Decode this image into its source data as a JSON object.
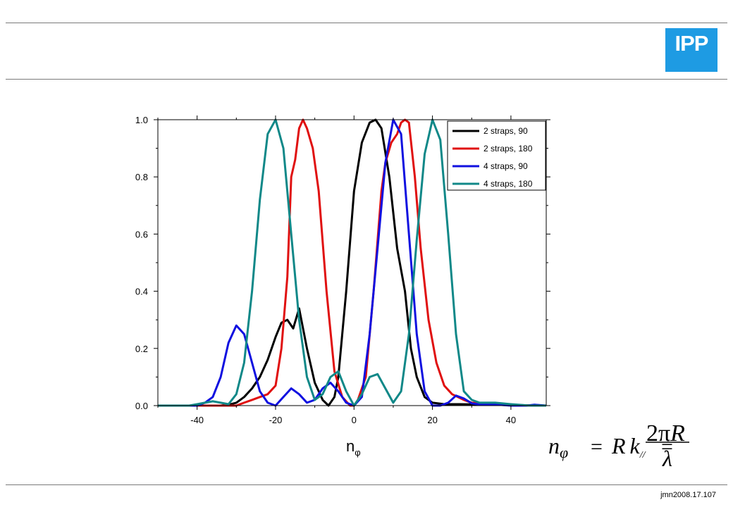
{
  "logo": {
    "text": "IPP",
    "color": "#1e9be3"
  },
  "footer": {
    "ref": "jmn2008.17.107"
  },
  "formula": {
    "lhs_base": "n",
    "lhs_sub": "φ",
    "eq1": "=",
    "mid_R": "R",
    "mid_k": "k",
    "mid_sub": "//",
    "eq2": "=",
    "num_2": "2",
    "num_pi": "π",
    "num_R": "R",
    "den": "λ"
  },
  "chart_data": {
    "type": "line",
    "title": "",
    "xlabel": "n",
    "xlabel_sub": "φ",
    "ylabel": "",
    "xlim": [
      -50,
      49
    ],
    "ylim": [
      0,
      1.0
    ],
    "x_ticks": [
      -40,
      -20,
      0,
      20,
      40
    ],
    "x_tick_labels": [
      "-40",
      "-20",
      "0",
      "20",
      "40"
    ],
    "y_ticks": [
      0,
      0.2,
      0.4,
      0.6,
      0.8,
      1.0
    ],
    "y_tick_labels": [
      "0.0",
      "0.2",
      "0.4",
      "0.6",
      "0.8",
      "1.0"
    ],
    "grid": false,
    "legend_position": "top-right",
    "series": [
      {
        "name": "2 straps, 90",
        "color": "#000000",
        "x": [
          -50,
          -38,
          -34,
          -32,
          -30,
          -28,
          -26,
          -24,
          -22,
          -20,
          -18.5,
          -17,
          -15.5,
          -14,
          -12,
          -10,
          -8,
          -6.5,
          -5,
          -4,
          -2,
          0,
          2,
          4,
          5.5,
          7,
          9,
          11,
          13,
          14.5,
          16,
          18,
          20,
          23,
          27,
          32,
          40,
          49
        ],
        "y": [
          0,
          0,
          0,
          0.003,
          0.01,
          0.03,
          0.06,
          0.1,
          0.16,
          0.24,
          0.29,
          0.3,
          0.27,
          0.34,
          0.2,
          0.08,
          0.02,
          0,
          0.03,
          0.1,
          0.4,
          0.75,
          0.92,
          0.99,
          1.0,
          0.97,
          0.8,
          0.55,
          0.4,
          0.2,
          0.1,
          0.03,
          0.01,
          0.005,
          0.005,
          0.004,
          0.002,
          0
        ]
      },
      {
        "name": "2 straps, 180",
        "color": "#e01010",
        "x": [
          -50,
          -35,
          -30,
          -28,
          -26,
          -24,
          -22,
          -20,
          -18.5,
          -17,
          -16,
          -15,
          -14,
          -13,
          -12,
          -10.5,
          -9,
          -7,
          -5,
          -3,
          -1,
          0,
          1,
          3,
          5,
          7,
          8,
          9.5,
          11,
          12,
          13,
          14,
          15.5,
          17,
          19,
          21,
          23,
          25,
          28,
          30,
          35,
          40,
          49
        ],
        "y": [
          0,
          0,
          0,
          0.01,
          0.02,
          0.03,
          0.04,
          0.07,
          0.2,
          0.45,
          0.8,
          0.86,
          0.97,
          1.0,
          0.97,
          0.9,
          0.75,
          0.4,
          0.12,
          0.03,
          0,
          0,
          0.02,
          0.1,
          0.4,
          0.75,
          0.85,
          0.92,
          0.95,
          0.99,
          1.0,
          0.99,
          0.8,
          0.55,
          0.3,
          0.15,
          0.07,
          0.04,
          0.02,
          0.01,
          0.005,
          0.002,
          0
        ]
      },
      {
        "name": "4 straps, 90",
        "color": "#1010e0",
        "x": [
          -50,
          -40,
          -38,
          -36,
          -34,
          -32,
          -30,
          -28,
          -26,
          -24,
          -22,
          -20,
          -18,
          -16,
          -14,
          -12,
          -10,
          -8,
          -6,
          -4,
          -2,
          0,
          2,
          4,
          6,
          8,
          10,
          12,
          14,
          16,
          18,
          20,
          22,
          24,
          26,
          28,
          30,
          32,
          36,
          40,
          44,
          46,
          49
        ],
        "y": [
          0,
          0,
          0.01,
          0.03,
          0.1,
          0.22,
          0.28,
          0.25,
          0.15,
          0.05,
          0.01,
          0,
          0.03,
          0.06,
          0.04,
          0.01,
          0.02,
          0.06,
          0.08,
          0.05,
          0.01,
          0,
          0.03,
          0.25,
          0.55,
          0.85,
          1.0,
          0.95,
          0.6,
          0.25,
          0.05,
          0,
          0,
          0.01,
          0.035,
          0.025,
          0.008,
          0.004,
          0.004,
          0,
          0,
          0.003,
          0
        ]
      },
      {
        "name": "4 straps, 180",
        "color": "#108888",
        "x": [
          -50,
          -42,
          -40,
          -38,
          -36,
          -34,
          -32,
          -30,
          -28,
          -26,
          -24,
          -22,
          -20,
          -18,
          -16,
          -14,
          -12,
          -10,
          -8,
          -6,
          -4,
          -2,
          0,
          2,
          4,
          6,
          8,
          10,
          12,
          14,
          16,
          18,
          20,
          22,
          24,
          26,
          28,
          30,
          32,
          36,
          40,
          45,
          49
        ],
        "y": [
          0,
          0,
          0.005,
          0.01,
          0.015,
          0.01,
          0.005,
          0.04,
          0.15,
          0.4,
          0.72,
          0.95,
          1.0,
          0.9,
          0.6,
          0.3,
          0.1,
          0.02,
          0.04,
          0.1,
          0.12,
          0.05,
          0,
          0.04,
          0.1,
          0.11,
          0.06,
          0.01,
          0.05,
          0.25,
          0.58,
          0.88,
          1.0,
          0.93,
          0.6,
          0.25,
          0.05,
          0.02,
          0.01,
          0.01,
          0.005,
          0,
          0
        ]
      }
    ]
  }
}
